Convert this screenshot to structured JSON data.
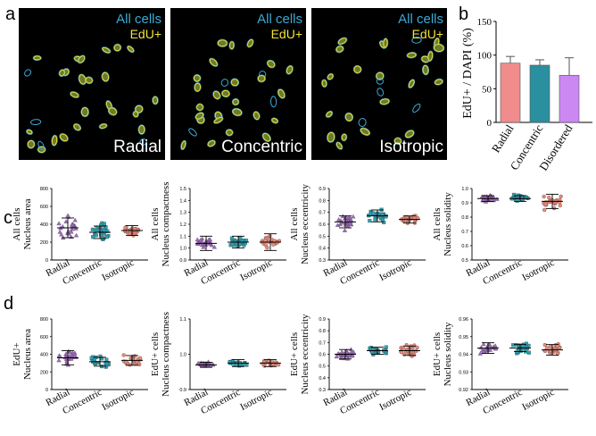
{
  "figure": {
    "panel_labels": [
      "a",
      "b",
      "c",
      "d"
    ]
  },
  "panel_a": {
    "images": [
      {
        "label": "Radial",
        "legend_all": "All cells",
        "legend_edu": "EdU+"
      },
      {
        "label": "Concentric",
        "legend_all": "All cells",
        "legend_edu": "EdU+"
      },
      {
        "label": "Isotropic",
        "legend_all": "All cells",
        "legend_edu": "EdU+"
      }
    ],
    "colors": {
      "all_cells": "#3aa9d6",
      "edu": "#f2e23a",
      "background": "#000000"
    }
  },
  "colors": {
    "radial": "#a16bbf",
    "concentric": "#2e9fb0",
    "isotropic": "#e88a7a",
    "disordered": "#cc88ee",
    "radial_bar": "#f08c8c",
    "concentric_bar": "#2a8f9e",
    "disordered_bar": "#cc88f2"
  },
  "chart_data": [
    {
      "id": "b",
      "type": "bar",
      "title": "",
      "xlabel": "",
      "ylabel": "EdU+ / DAPI (%)",
      "categories": [
        "Radial",
        "Concentric",
        "Disordered"
      ],
      "values": [
        88,
        85,
        70
      ],
      "errors": [
        10,
        8,
        26
      ],
      "ylim": [
        0,
        150
      ],
      "yticks": [
        "0",
        "50",
        "100",
        "150"
      ]
    },
    {
      "id": "c1",
      "type": "scatter",
      "row_label": "All cells",
      "ylabel": "Nucleus area",
      "ylim": [
        0,
        800
      ],
      "yticks": [
        "0",
        "200",
        "400",
        "600",
        "800"
      ],
      "categories": [
        "Radial",
        "Concentric",
        "Isotropic"
      ],
      "means": [
        360,
        310,
        330
      ],
      "sd": [
        110,
        70,
        55
      ],
      "spread": [
        190,
        120,
        70
      ]
    },
    {
      "id": "c2",
      "type": "scatter",
      "row_label": "All cells",
      "ylabel": "Nucleus compactness",
      "ylim": [
        0.9,
        1.5
      ],
      "yticks": [
        "0.9",
        "1.0",
        "1.1",
        "1.2",
        "1.3",
        "1.4",
        "1.5"
      ],
      "categories": [
        "Radial",
        "Concentric",
        "Isotropic"
      ],
      "means": [
        1.04,
        1.05,
        1.05
      ],
      "sd": [
        0.06,
        0.05,
        0.07
      ],
      "spread": [
        0.06,
        0.06,
        0.07
      ]
    },
    {
      "id": "c3",
      "type": "scatter",
      "row_label": "All cells",
      "ylabel": "Nucleus eccentricity",
      "ylim": [
        0.3,
        0.9
      ],
      "yticks": [
        "0.3",
        "0.4",
        "0.5",
        "0.6",
        "0.7",
        "0.8",
        "0.9"
      ],
      "categories": [
        "Radial",
        "Concentric",
        "Isotropic"
      ],
      "means": [
        0.62,
        0.67,
        0.64
      ],
      "sd": [
        0.05,
        0.05,
        0.03
      ],
      "spread": [
        0.08,
        0.08,
        0.05
      ]
    },
    {
      "id": "c4",
      "type": "scatter",
      "row_label": "All cells",
      "ylabel": "Nucleus solidity",
      "ylim": [
        0.5,
        1.0
      ],
      "yticks": [
        "0.5",
        "0.6",
        "0.7",
        "0.8",
        "0.9",
        "1.0"
      ],
      "categories": [
        "Radial",
        "Concentric",
        "Isotropic"
      ],
      "means": [
        0.93,
        0.93,
        0.91
      ],
      "sd": [
        0.02,
        0.02,
        0.05
      ],
      "spread": [
        0.04,
        0.04,
        0.08
      ]
    },
    {
      "id": "d1",
      "type": "scatter",
      "row_label": "EdU+",
      "ylabel": "Nucleus area",
      "ylim": [
        0,
        800
      ],
      "yticks": [
        "0",
        "200",
        "400",
        "600",
        "800"
      ],
      "categories": [
        "Radial",
        "Concentric",
        "Isotropic"
      ],
      "means": [
        360,
        315,
        330
      ],
      "sd": [
        80,
        50,
        55
      ],
      "spread": [
        130,
        80,
        90
      ]
    },
    {
      "id": "d2",
      "type": "scatter",
      "row_label": "EdU+ cells",
      "ylabel": "Nucleus compactness",
      "ylim": [
        0.9,
        1.1
      ],
      "yticks": [
        "0.9",
        "1.0",
        "1.1"
      ],
      "categories": [
        "Radial",
        "Concentric",
        "Isotropic"
      ],
      "means": [
        0.97,
        0.975,
        0.975
      ],
      "sd": [
        0.007,
        0.01,
        0.01
      ],
      "spread": [
        0.01,
        0.014,
        0.014
      ]
    },
    {
      "id": "d3",
      "type": "scatter",
      "row_label": "EdU+ cells",
      "ylabel": "Nucleus eccentricity",
      "ylim": [
        0.3,
        0.9
      ],
      "yticks": [
        "0.3",
        "0.4",
        "0.5",
        "0.6",
        "0.7",
        "0.8",
        "0.9"
      ],
      "categories": [
        "Radial",
        "Concentric",
        "Isotropic"
      ],
      "means": [
        0.6,
        0.63,
        0.63
      ],
      "sd": [
        0.04,
        0.03,
        0.04
      ],
      "spread": [
        0.06,
        0.05,
        0.07
      ]
    },
    {
      "id": "d4",
      "type": "scatter",
      "row_label": "EdU+ cells",
      "ylabel": "Nucleus solidity",
      "ylim": [
        0.92,
        0.96
      ],
      "yticks": [
        "0.92",
        "0.93",
        "0.94",
        "0.95",
        "0.96"
      ],
      "categories": [
        "Radial",
        "Concentric",
        "Isotropic"
      ],
      "means": [
        0.9435,
        0.9435,
        0.9425
      ],
      "sd": [
        0.003,
        0.002,
        0.003
      ],
      "spread": [
        0.005,
        0.004,
        0.006
      ]
    }
  ]
}
